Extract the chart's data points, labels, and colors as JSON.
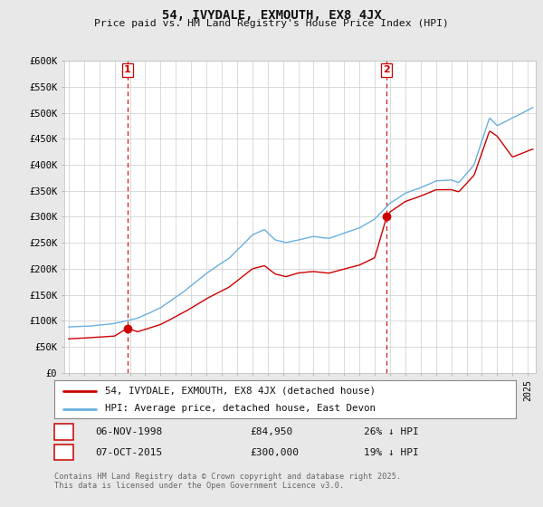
{
  "title": "54, IVYDALE, EXMOUTH, EX8 4JX",
  "subtitle": "Price paid vs. HM Land Registry's House Price Index (HPI)",
  "ylabel_ticks": [
    "£0",
    "£50K",
    "£100K",
    "£150K",
    "£200K",
    "£250K",
    "£300K",
    "£350K",
    "£400K",
    "£450K",
    "£500K",
    "£550K",
    "£600K"
  ],
  "ytick_values": [
    0,
    50000,
    100000,
    150000,
    200000,
    250000,
    300000,
    350000,
    400000,
    450000,
    500000,
    550000,
    600000
  ],
  "xlim_start": 1994.7,
  "xlim_end": 2025.5,
  "ylim_min": 0,
  "ylim_max": 600000,
  "hpi_color": "#6ab0e0",
  "price_color": "#cc0000",
  "marker1_date": "06-NOV-1998",
  "marker1_price": 84950,
  "marker1_price_fmt": "£84,950",
  "marker1_pct": "26% ↓ HPI",
  "marker1_year": 1998.84,
  "marker2_date": "07-OCT-2015",
  "marker2_price": 300000,
  "marker2_price_fmt": "£300,000",
  "marker2_pct": "19% ↓ HPI",
  "marker2_year": 2015.77,
  "legend1": "54, IVYDALE, EXMOUTH, EX8 4JX (detached house)",
  "legend2": "HPI: Average price, detached house, East Devon",
  "footnote1": "Contains HM Land Registry data © Crown copyright and database right 2025.",
  "footnote2": "This data is licensed under the Open Government Licence v3.0.",
  "background_color": "#e8e8e8",
  "plot_bg_color": "#ffffff",
  "grid_color": "#cccccc",
  "hpi_keypoints_x": [
    1995.0,
    1996.5,
    1998.0,
    1999.5,
    2001.0,
    2002.5,
    2004.0,
    2005.5,
    2007.0,
    2007.8,
    2008.5,
    2009.2,
    2010.0,
    2011.0,
    2012.0,
    2013.0,
    2014.0,
    2015.0,
    2016.0,
    2017.0,
    2018.0,
    2019.0,
    2020.0,
    2020.5,
    2021.5,
    2022.5,
    2023.0,
    2024.0,
    2025.3
  ],
  "hpi_keypoints_y": [
    88000,
    90000,
    95000,
    105000,
    125000,
    155000,
    190000,
    220000,
    265000,
    275000,
    255000,
    250000,
    255000,
    262000,
    258000,
    268000,
    278000,
    295000,
    325000,
    345000,
    355000,
    368000,
    370000,
    365000,
    400000,
    490000,
    475000,
    490000,
    510000
  ],
  "price_keypoints_x": [
    1995.0,
    1996.5,
    1998.0,
    1998.84,
    1999.5,
    2001.0,
    2002.5,
    2004.0,
    2005.5,
    2007.0,
    2007.8,
    2008.5,
    2009.2,
    2010.0,
    2011.0,
    2012.0,
    2013.0,
    2014.0,
    2015.0,
    2015.77,
    2016.0,
    2017.0,
    2018.0,
    2019.0,
    2020.0,
    2020.5,
    2021.5,
    2022.5,
    2023.0,
    2024.0,
    2025.3
  ],
  "price_keypoints_y": [
    65000,
    67000,
    70000,
    84950,
    78000,
    92000,
    115000,
    142000,
    165000,
    200000,
    206000,
    190000,
    185000,
    192000,
    195000,
    192000,
    200000,
    208000,
    222000,
    300000,
    310000,
    330000,
    340000,
    352000,
    352000,
    348000,
    380000,
    465000,
    455000,
    415000,
    430000
  ]
}
